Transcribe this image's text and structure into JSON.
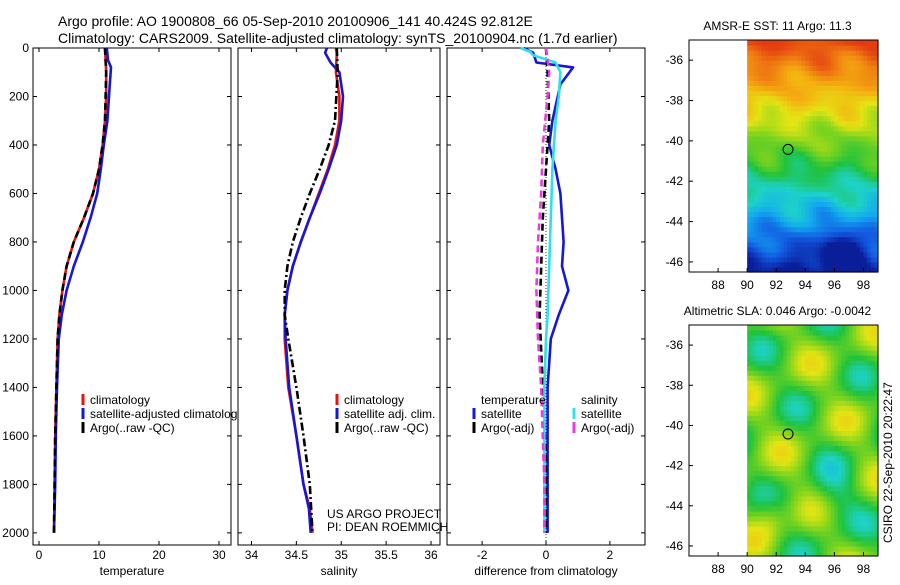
{
  "header": {
    "line1": "Argo profile: AO 1900808_66 05-Sep-2010 20100906_141 40.424S 92.812E",
    "line2": "Climatology: CARS2009. Satellite-adjusted climatology: synTS_20100904.nc (1.7d earlier)"
  },
  "colors": {
    "red": "#e8120f",
    "blue": "#1616d8",
    "black": "#000000",
    "cyan": "#2ee0e8",
    "magenta": "#e83ce0"
  },
  "chart_data": [
    {
      "type": "line",
      "name": "temperature-profile",
      "xlabel": "temperature",
      "xlim": [
        -1,
        32
      ],
      "ylim": [
        2050,
        0
      ],
      "xticks": [
        0,
        10,
        20,
        30
      ],
      "yticks": [
        0,
        200,
        400,
        600,
        800,
        1000,
        1200,
        1400,
        1600,
        1800,
        2000
      ],
      "legend": [
        "climatology",
        "satellite-adjusted climatology",
        "Argo(..raw -QC)"
      ],
      "series": [
        {
          "name": "climatology",
          "color": "red",
          "dash": "solid",
          "x": [
            11.0,
            11.1,
            11.2,
            11.2,
            11.0,
            10.6,
            10.0,
            9.0,
            7.5,
            5.8,
            4.6,
            3.9,
            3.4,
            3.1,
            2.9,
            2.7,
            2.6,
            2.5
          ],
          "y": [
            0,
            50,
            100,
            200,
            300,
            400,
            500,
            600,
            700,
            800,
            900,
            1000,
            1100,
            1200,
            1400,
            1600,
            1800,
            2000
          ]
        },
        {
          "name": "satellite-adjusted climatology",
          "color": "blue",
          "dash": "solid",
          "x": [
            11.3,
            11.5,
            12.0,
            11.8,
            11.4,
            10.8,
            10.3,
            9.7,
            8.6,
            7.3,
            5.8,
            4.6,
            3.8,
            3.3,
            3.0,
            2.8,
            2.7,
            2.6,
            2.5
          ],
          "y": [
            0,
            50,
            80,
            150,
            300,
            400,
            500,
            600,
            700,
            800,
            900,
            1000,
            1100,
            1200,
            1400,
            1600,
            1800,
            1900,
            2000
          ]
        },
        {
          "name": "Argo(..raw -QC)",
          "color": "black",
          "dash": "dash",
          "x": [
            11.0,
            11.1,
            11.2,
            11.0,
            10.6,
            10.0,
            9.0,
            7.5,
            5.8,
            4.6,
            3.9,
            3.4,
            3.1,
            2.9,
            2.7,
            2.6,
            2.5
          ],
          "y": [
            0,
            50,
            100,
            300,
            400,
            500,
            600,
            700,
            800,
            900,
            1000,
            1100,
            1200,
            1400,
            1600,
            1800,
            2000
          ]
        }
      ]
    },
    {
      "type": "line",
      "name": "salinity-profile",
      "xlabel": "salinity",
      "xlim": [
        33.85,
        36.1
      ],
      "ylim": [
        2050,
        0
      ],
      "xticks": [
        34,
        34.5,
        35,
        35.5,
        36
      ],
      "xticklabels": [
        "34",
        "34.5",
        "35",
        "35.5",
        "36"
      ],
      "legend": [
        "climatology",
        "satellite adj. clim.",
        "Argo(..raw -QC)"
      ],
      "series": [
        {
          "name": "climatology",
          "color": "red",
          "dash": "solid",
          "x": [
            34.94,
            34.95,
            34.94,
            34.98,
            34.98,
            34.93,
            34.85,
            34.75,
            34.65,
            34.55,
            34.46,
            34.4,
            34.37,
            34.37,
            34.41,
            34.5,
            34.58,
            34.65,
            34.68
          ],
          "y": [
            0,
            20,
            100,
            200,
            300,
            400,
            500,
            600,
            700,
            800,
            900,
            1000,
            1100,
            1200,
            1400,
            1600,
            1800,
            1900,
            2000
          ]
        },
        {
          "name": "satellite adj. clim.",
          "color": "blue",
          "dash": "solid",
          "x": [
            34.84,
            34.82,
            34.88,
            34.98,
            35.02,
            35.0,
            34.95,
            34.86,
            34.76,
            34.65,
            34.55,
            34.46,
            34.4,
            34.37,
            34.38,
            34.42,
            34.5,
            34.58,
            34.64,
            34.66
          ],
          "y": [
            0,
            20,
            60,
            100,
            200,
            300,
            400,
            500,
            600,
            700,
            800,
            900,
            1000,
            1100,
            1200,
            1400,
            1600,
            1800,
            1900,
            2000
          ]
        },
        {
          "name": "Argo(..raw -QC)",
          "color": "black",
          "dash": "dashdot",
          "x": [
            34.95,
            34.96,
            34.93,
            34.86,
            34.76,
            34.65,
            34.55,
            34.46,
            34.4,
            34.37,
            34.37,
            34.41,
            34.5,
            34.58,
            34.65,
            34.68
          ],
          "y": [
            0,
            100,
            300,
            400,
            500,
            600,
            700,
            800,
            900,
            1000,
            1100,
            1200,
            1400,
            1600,
            1800,
            2000
          ]
        }
      ]
    },
    {
      "type": "line",
      "name": "difference-profile",
      "xlabel": "difference from climatology",
      "xlim": [
        -3.1,
        3.1
      ],
      "ylim": [
        2050,
        0
      ],
      "xticks": [
        -2,
        0,
        2
      ],
      "legend_groups": [
        {
          "title": "temperature",
          "entries": [
            "satellite",
            "Argo(-adj)"
          ]
        },
        {
          "title": "salinity",
          "entries": [
            "satellite",
            "Argo(-adj)"
          ]
        }
      ],
      "series": [
        {
          "name": "temperature satellite",
          "color": "blue",
          "dash": "solid",
          "x": [
            -0.7,
            -0.4,
            -0.3,
            0.85,
            0.45,
            0.2,
            0.1,
            0.3,
            0.45,
            0.5,
            0.55,
            0.5,
            0.7,
            0.4,
            0.15,
            0.05,
            0.05,
            0.05,
            0.05
          ],
          "y": [
            0,
            20,
            60,
            80,
            150,
            300,
            400,
            500,
            600,
            700,
            800,
            900,
            1000,
            1100,
            1200,
            1400,
            1600,
            1800,
            2000
          ]
        },
        {
          "name": "temperature Argo(-adj)",
          "color": "black",
          "dash": "dash",
          "x": [
            0.0,
            0.05,
            0.1,
            0.0,
            -0.1,
            -0.15,
            -0.2,
            -0.1,
            0.0,
            0.0
          ],
          "y": [
            0,
            100,
            300,
            500,
            700,
            900,
            1100,
            1400,
            1700,
            2000
          ]
        },
        {
          "name": "salinity satellite",
          "color": "cyan",
          "dash": "solid",
          "x": [
            -0.8,
            -0.5,
            -0.4,
            0.3,
            0.45,
            0.4,
            0.3,
            0.2,
            0.15,
            0.1,
            0.05,
            0.0,
            -0.05,
            -0.05,
            -0.05,
            -0.05
          ],
          "y": [
            0,
            15,
            30,
            60,
            100,
            200,
            300,
            500,
            700,
            900,
            1100,
            1200,
            1400,
            1600,
            1800,
            2000
          ]
        },
        {
          "name": "salinity Argo(-adj)",
          "color": "magenta",
          "dash": "dash",
          "x": [
            0.0,
            0.1,
            0.05,
            -0.1,
            -0.15,
            -0.25,
            -0.3,
            -0.25,
            -0.15,
            -0.1,
            -0.05,
            -0.05
          ],
          "y": [
            0,
            100,
            200,
            400,
            600,
            800,
            1000,
            1200,
            1400,
            1600,
            1800,
            2000
          ]
        }
      ]
    },
    {
      "type": "heatmap",
      "name": "sst-map",
      "title": "AMSR-E SST: 11 Argo: 11.3",
      "xlim": [
        86,
        99
      ],
      "ylim": [
        -46.5,
        -35
      ],
      "xticks": [
        88,
        90,
        92,
        94,
        96,
        98
      ],
      "yticks": [
        -36,
        -38,
        -40,
        -42,
        -44,
        -46
      ],
      "data_xmin": 90,
      "float_marker": [
        92.812,
        -40.424
      ],
      "palette": [
        "#0b1e9a",
        "#1258e0",
        "#12a8f0",
        "#1ed2c8",
        "#1fc23d",
        "#7ed41e",
        "#e4e414",
        "#f4b010",
        "#ef7a12",
        "#e33a10"
      ]
    },
    {
      "type": "heatmap",
      "name": "sla-map",
      "title": "Altimetric SLA: 0.046 Argo: -0.0042",
      "xlim": [
        86,
        99
      ],
      "ylim": [
        -46.5,
        -35
      ],
      "xticks": [
        88,
        90,
        92,
        94,
        96,
        98
      ],
      "yticks": [
        -36,
        -38,
        -40,
        -42,
        -44,
        -46
      ],
      "data_xmin": 90,
      "float_marker": [
        92.812,
        -40.424
      ],
      "palette": [
        "#0b1e9a",
        "#1258e0",
        "#12a8f0",
        "#1ed2c8",
        "#1fc23d",
        "#7ed41e",
        "#e4e414",
        "#f4b010",
        "#ef7a12",
        "#e33a10"
      ]
    }
  ],
  "annotations": {
    "project": "US ARGO PROJECT",
    "pi": "PI: DEAN ROEMMICH",
    "credit": "CSIRO 22-Sep-2010 20:22:47"
  }
}
